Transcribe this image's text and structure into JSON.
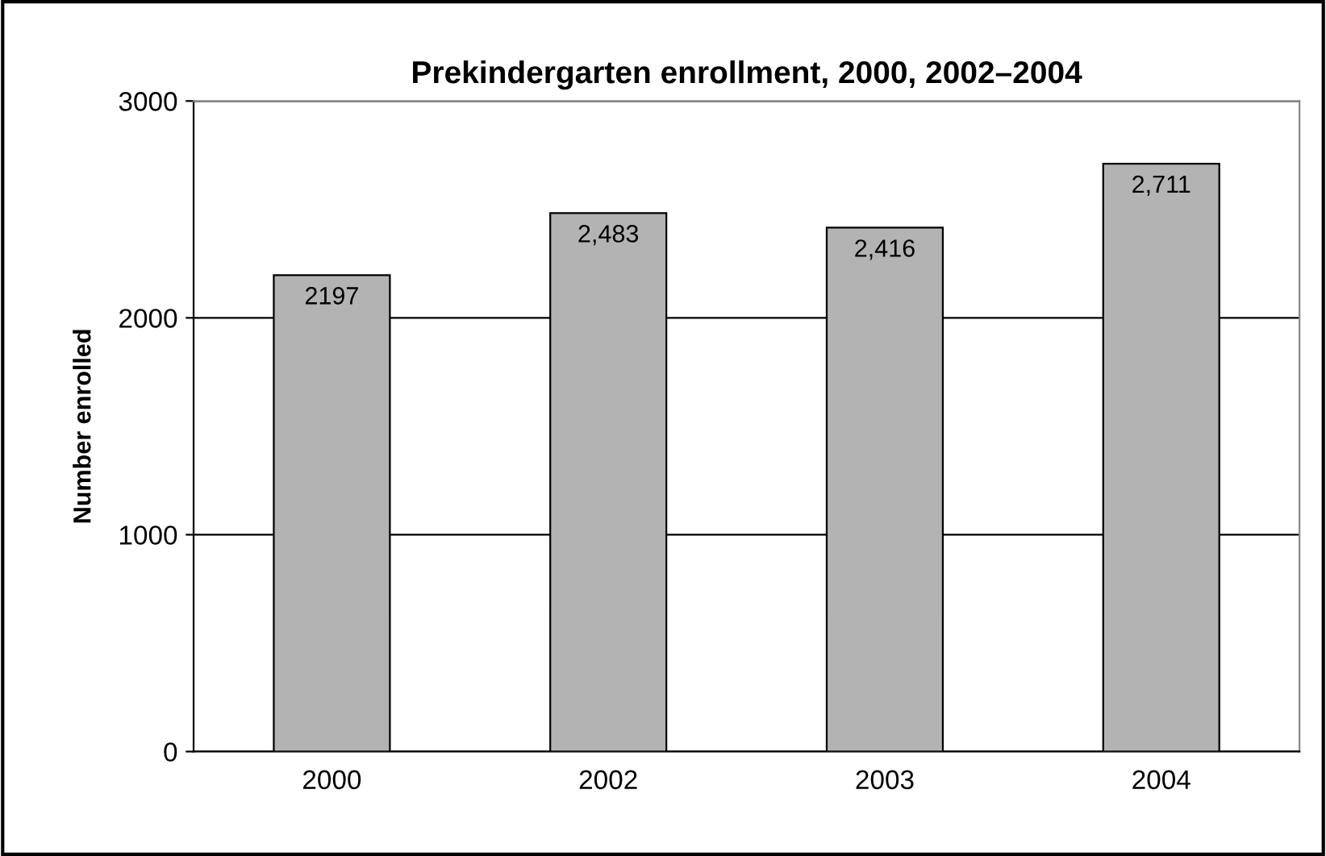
{
  "chart_data": {
    "type": "bar",
    "title": "Prekindergarten enrollment, 2000, 2002–2004",
    "ylabel": "Number enrolled",
    "categories": [
      "2000",
      "2002",
      "2003",
      "2004"
    ],
    "values": [
      2197,
      2483,
      2416,
      2711
    ],
    "value_labels": [
      "2197",
      "2,483",
      "2,416",
      "2,711"
    ],
    "color": "#b3b3b3",
    "ylim": [
      0,
      3000
    ],
    "yticks": [
      0,
      1000,
      2000,
      3000
    ],
    "grid": "y",
    "legend": false
  }
}
